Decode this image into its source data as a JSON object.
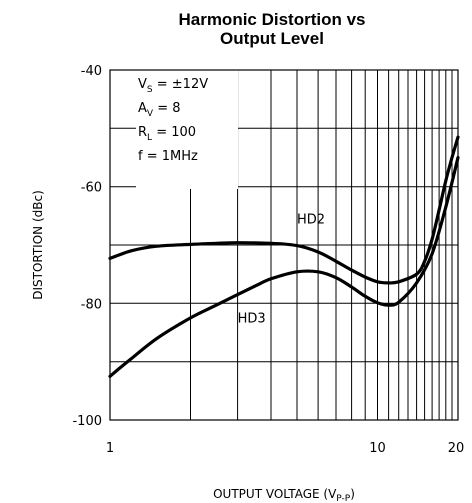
{
  "chart_data": {
    "type": "line",
    "title_line1": "Harmonic Distortion vs",
    "title_line2": "Output Level",
    "xlabel_main": "OUTPUT VOLTAGE (V",
    "xlabel_sub": "P-P",
    "xlabel_close": ")",
    "ylabel": "DISTORTION (dBc)",
    "x_scale": "log",
    "xlim": [
      1,
      20
    ],
    "ylim": [
      -100,
      -40
    ],
    "x_ticks": [
      1,
      10,
      20
    ],
    "x_tick_labels": [
      "1",
      "10",
      "20"
    ],
    "y_ticks": [
      -40,
      -60,
      -80,
      -100
    ],
    "y_tick_labels": [
      "-40",
      "-60",
      "-80",
      "-100"
    ],
    "grid": true,
    "conditions": [
      {
        "main": "V",
        "sub": "S",
        "rest": " = ±12V"
      },
      {
        "main": "A",
        "sub": "V",
        "rest": " = 8"
      },
      {
        "main": "R",
        "sub": "L",
        "rest": " = 100"
      },
      {
        "main": "f",
        "sub": "",
        "rest": " = 1MHz"
      }
    ],
    "series": [
      {
        "name": "HD2",
        "x": [
          1,
          1.2,
          1.5,
          2,
          2.5,
          3,
          4,
          5,
          6,
          7,
          8,
          9,
          10,
          11,
          12,
          14,
          15,
          16,
          17,
          18,
          19,
          20
        ],
        "y": [
          -72.3,
          -71.0,
          -70.2,
          -69.9,
          -69.7,
          -69.6,
          -69.7,
          -70.1,
          -71.2,
          -72.8,
          -74.3,
          -75.5,
          -76.3,
          -76.5,
          -76.3,
          -75.0,
          -72.8,
          -69.0,
          -64.0,
          -59.0,
          -55.0,
          -51.5
        ]
      },
      {
        "name": "HD3",
        "x": [
          1,
          1.2,
          1.5,
          2,
          2.5,
          3,
          3.5,
          4,
          5,
          6,
          7,
          8,
          9,
          10,
          11,
          12,
          14,
          16,
          18,
          20
        ],
        "y": [
          -92.5,
          -89.5,
          -86.0,
          -82.5,
          -80.3,
          -78.5,
          -77.0,
          -75.8,
          -74.6,
          -74.6,
          -75.6,
          -77.2,
          -78.8,
          -79.9,
          -80.3,
          -79.8,
          -76.5,
          -71.5,
          -63.5,
          -55.0
        ]
      }
    ]
  }
}
